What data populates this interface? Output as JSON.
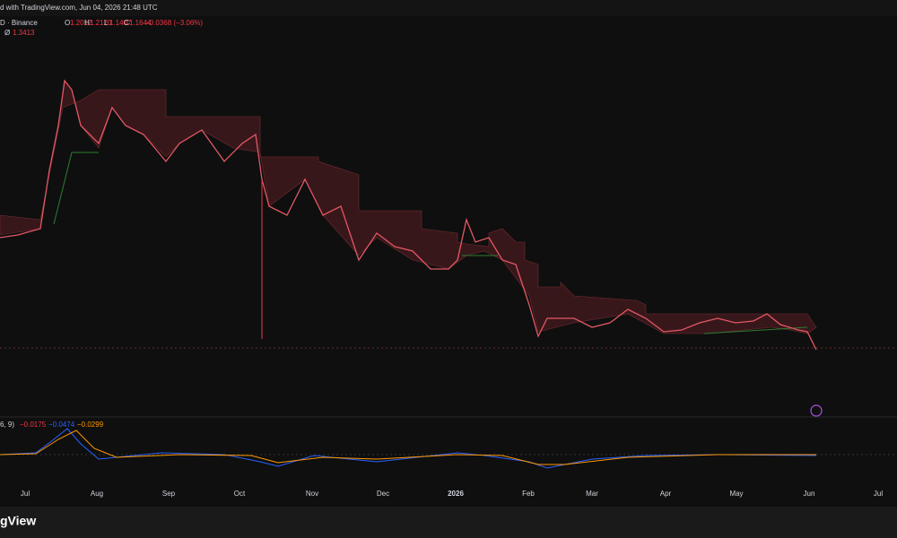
{
  "header": {
    "snapshot": "d with TradingView.com, Jun 04, 2026 21:48 UTC",
    "symbol": "D · Binance",
    "ohlc": [
      {
        "label": "O",
        "value": "1.2012"
      },
      {
        "label": "H",
        "value": "1.2120"
      },
      {
        "label": "L",
        "value": "1.1407"
      },
      {
        "label": "C",
        "value": "1.1644"
      }
    ],
    "change": "−0.0368 (−3.06%)",
    "indicator_label": "Ø",
    "indicator_value": "1.3413"
  },
  "macd": {
    "params": "6, 9)",
    "values": [
      "−0.0175",
      "−0.0474",
      "−0.0299"
    ]
  },
  "x_axis": {
    "labels": [
      "Jul",
      "Aug",
      "Sep",
      "Oct",
      "Nov",
      "Dec",
      "2026",
      "Feb",
      "Mar",
      "Apr",
      "May",
      "Jun",
      "Jul"
    ]
  },
  "footer": {
    "brand": "gView"
  }
}
